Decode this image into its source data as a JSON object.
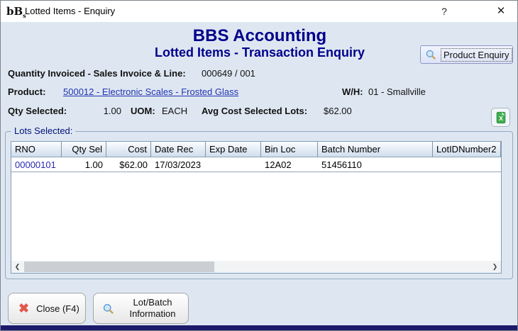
{
  "window": {
    "title": "Lotted Items - Enquiry",
    "app_icon_text": "bB",
    "app_icon_sub": "s"
  },
  "icons": {
    "help": "?",
    "close": "✕",
    "close_x": "✖",
    "scroll_left": "❮",
    "scroll_right": "❯"
  },
  "header": {
    "app_title": "BBS Accounting",
    "screen_title": "Lotted Items - Transaction Enquiry",
    "product_enquiry_label": "Product Enquiry"
  },
  "fields": {
    "qty_invoiced_label": "Quantity Invoiced - Sales Invoice & Line:",
    "qty_invoiced_value": "000649 / 001",
    "product_label": "Product:",
    "product_link": "500012 - Electronic Scales - Frosted Glass",
    "wh_label": "W/H:",
    "wh_value": "01 - Smallville",
    "qty_selected_label": "Qty Selected:",
    "qty_selected_value": "1.00",
    "uom_label": "UOM:",
    "uom_value": "EACH",
    "avg_cost_label": "Avg Cost Selected Lots:",
    "avg_cost_value": "$62.00"
  },
  "lots": {
    "group_label": "Lots Selected:",
    "columns": [
      "RNO",
      "Qty Sel",
      "Cost",
      "Date Rec",
      "Exp Date",
      "Bin Loc",
      "Batch Number",
      "LotIDNumber2"
    ],
    "rows": [
      [
        "00000101",
        "1.00",
        "$62.00",
        "17/03/2023",
        "",
        "12A02",
        "51456110",
        ""
      ]
    ]
  },
  "footer": {
    "close_label": "Close (F4)",
    "lot_batch_label": "Lot/Batch Information"
  },
  "colors": {
    "heading": "#00008b",
    "link": "#2233b2",
    "content_bg": "#dee7f1",
    "excel_green": "#3faf4e",
    "close_red": "#e2574c"
  }
}
